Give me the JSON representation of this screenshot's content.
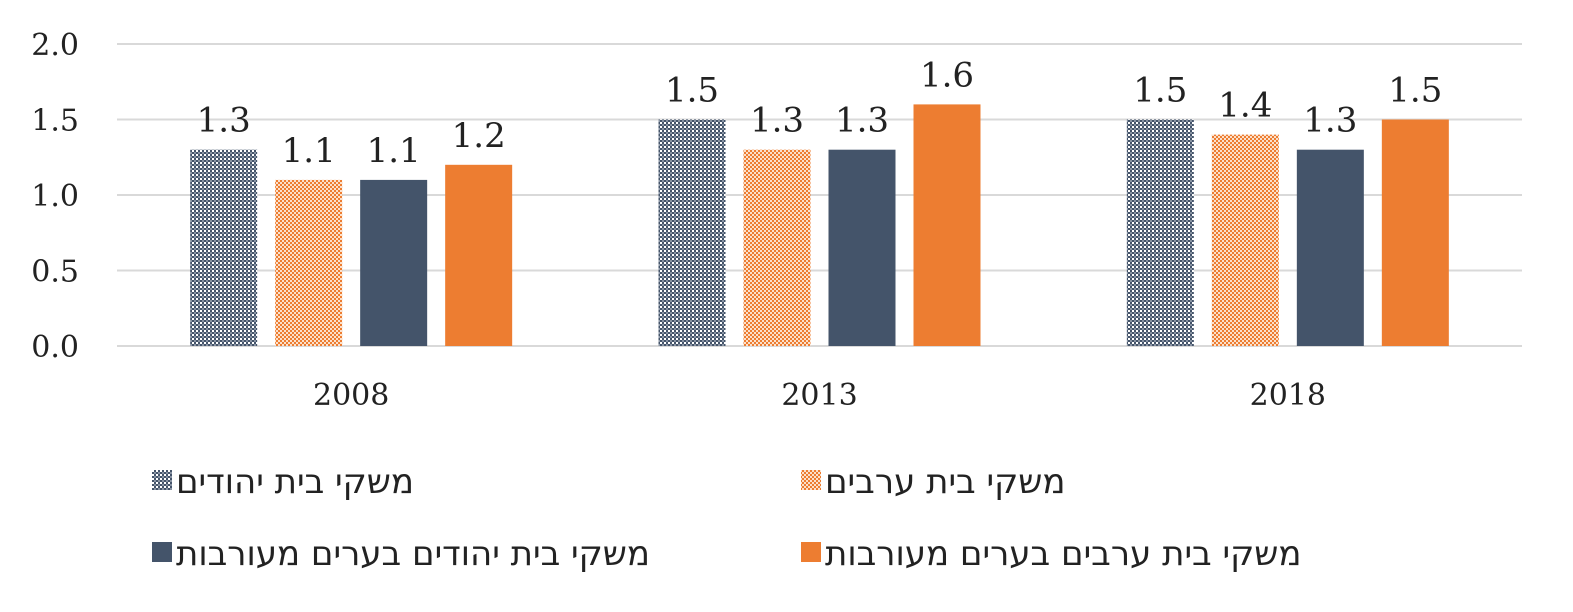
{
  "chart_data": {
    "type": "bar",
    "categories": [
      "2008",
      "2013",
      "2018"
    ],
    "series": [
      {
        "name": "משקי בית יהודים",
        "values": [
          1.3,
          1.5,
          1.5
        ],
        "labels": [
          "1.3",
          "1.5",
          "1.5"
        ],
        "color": "#44546A",
        "pattern": "dots"
      },
      {
        "name": "משקי בית ערבים",
        "values": [
          1.1,
          1.3,
          1.4
        ],
        "labels": [
          "1.1",
          "1.3",
          "1.4"
        ],
        "color": "#ED7D31",
        "pattern": "dots"
      },
      {
        "name": "משקי בית יהודים בערים מעורבות",
        "values": [
          1.1,
          1.3,
          1.3
        ],
        "labels": [
          "1.1",
          "1.3",
          "1.3"
        ],
        "color": "#44546A",
        "pattern": "solid"
      },
      {
        "name": "משקי בית ערבים בערים מעורבות",
        "values": [
          1.2,
          1.6,
          1.5
        ],
        "labels": [
          "1.2",
          "1.6",
          "1.5"
        ],
        "color": "#ED7D31",
        "pattern": "solid"
      }
    ],
    "yticks": [
      "0.0",
      "0.5",
      "1.0",
      "1.5",
      "2.0"
    ],
    "ylim": [
      0,
      2
    ],
    "grid": true,
    "legend_position": "bottom",
    "title": "",
    "xlabel": "",
    "ylabel": ""
  }
}
